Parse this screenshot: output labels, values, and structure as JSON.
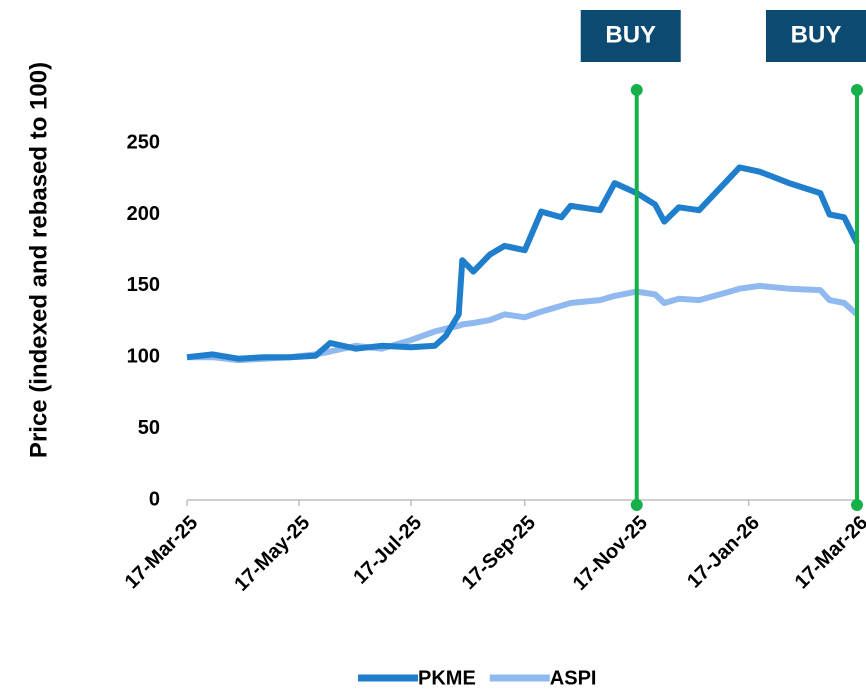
{
  "chart_data": {
    "type": "line",
    "ylabel": "Price (indexed and rebased to 100)",
    "x": [
      "2025-03-17",
      "2025-03-31",
      "2025-04-14",
      "2025-04-28",
      "2025-05-12",
      "2025-05-26",
      "2025-06-03",
      "2025-06-17",
      "2025-07-01",
      "2025-07-17",
      "2025-07-30",
      "2025-08-05",
      "2025-08-12",
      "2025-08-14",
      "2025-08-20",
      "2025-08-29",
      "2025-09-06",
      "2025-09-17",
      "2025-09-26",
      "2025-10-07",
      "2025-10-12",
      "2025-10-28",
      "2025-11-05",
      "2025-11-17",
      "2025-11-27",
      "2025-12-02",
      "2025-12-10",
      "2025-12-21",
      "2026-01-04",
      "2026-01-12",
      "2026-01-23",
      "2026-02-08",
      "2026-02-25",
      "2026-03-02",
      "2026-03-10",
      "2026-03-17"
    ],
    "series": [
      {
        "name": "PKME",
        "color": "#1f7fcc",
        "values": [
          100,
          102,
          99,
          100,
          100,
          101,
          110,
          106,
          108,
          107,
          108,
          115,
          130,
          168,
          160,
          172,
          178,
          175,
          202,
          198,
          206,
          203,
          222,
          215,
          207,
          195,
          205,
          203,
          222,
          233,
          230,
          222,
          215,
          200,
          198,
          180
        ]
      },
      {
        "name": "ASPI",
        "color": "#8fb9ef",
        "values": [
          100,
          100,
          98,
          99,
          100,
          102,
          104,
          108,
          106,
          112,
          118,
          120,
          122,
          123,
          124,
          126,
          130,
          128,
          132,
          136,
          138,
          140,
          143,
          146,
          144,
          138,
          141,
          140,
          145,
          148,
          150,
          148,
          147,
          140,
          138,
          130
        ]
      }
    ],
    "xlim": [
      "2025-03-17",
      "2026-03-17"
    ],
    "xticks": [
      {
        "value": "2025-03-17",
        "label": "17-Mar-25"
      },
      {
        "value": "2025-05-17",
        "label": "17-May-25"
      },
      {
        "value": "2025-07-17",
        "label": "17-Jul-25"
      },
      {
        "value": "2025-09-17",
        "label": "17-Sep-25"
      },
      {
        "value": "2025-11-17",
        "label": "17-Nov-25"
      },
      {
        "value": "2026-01-17",
        "label": "17-Jan-26"
      },
      {
        "value": "2026-03-17",
        "label": "17-Mar-26"
      }
    ],
    "ylim": [
      0,
      290
    ],
    "yticks": [
      0,
      50,
      100,
      150,
      200,
      250
    ],
    "grid": false,
    "legend": "bottom",
    "annotations": [
      {
        "text": "BUY",
        "x": "2025-11-17",
        "color": "#16b04a"
      },
      {
        "text": "BUY",
        "x": "2026-03-17",
        "color": "#16b04a"
      }
    ]
  }
}
